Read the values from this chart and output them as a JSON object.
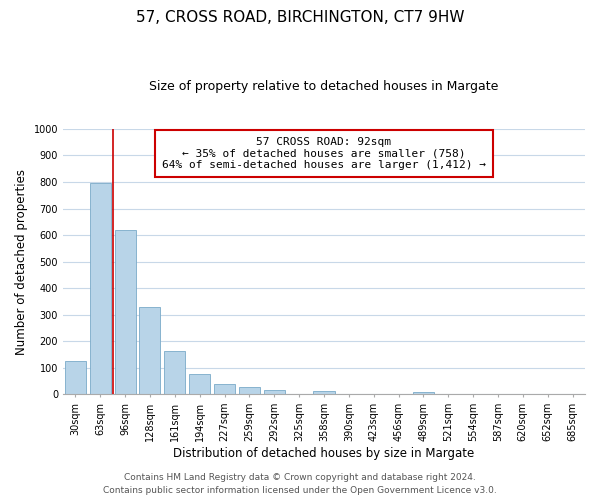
{
  "title": "57, CROSS ROAD, BIRCHINGTON, CT7 9HW",
  "subtitle": "Size of property relative to detached houses in Margate",
  "xlabel": "Distribution of detached houses by size in Margate",
  "ylabel": "Number of detached properties",
  "bar_labels": [
    "30sqm",
    "63sqm",
    "96sqm",
    "128sqm",
    "161sqm",
    "194sqm",
    "227sqm",
    "259sqm",
    "292sqm",
    "325sqm",
    "358sqm",
    "390sqm",
    "423sqm",
    "456sqm",
    "489sqm",
    "521sqm",
    "554sqm",
    "587sqm",
    "620sqm",
    "652sqm",
    "685sqm"
  ],
  "bar_values": [
    125,
    795,
    620,
    330,
    162,
    78,
    40,
    28,
    18,
    0,
    12,
    0,
    0,
    0,
    8,
    0,
    0,
    0,
    0,
    0,
    0
  ],
  "bar_color": "#b8d4e8",
  "bar_edge_color": "#7aaac8",
  "ylim": [
    0,
    1000
  ],
  "yticks": [
    0,
    100,
    200,
    300,
    400,
    500,
    600,
    700,
    800,
    900,
    1000
  ],
  "vline_x": 1.5,
  "vline_color": "#cc0000",
  "annotation_title": "57 CROSS ROAD: 92sqm",
  "annotation_line1": "← 35% of detached houses are smaller (758)",
  "annotation_line2": "64% of semi-detached houses are larger (1,412) →",
  "annotation_box_color": "#ffffff",
  "annotation_box_edge": "#cc0000",
  "footer_line1": "Contains HM Land Registry data © Crown copyright and database right 2024.",
  "footer_line2": "Contains public sector information licensed under the Open Government Licence v3.0.",
  "background_color": "#ffffff",
  "grid_color": "#c8d8e8",
  "title_fontsize": 11,
  "subtitle_fontsize": 9,
  "axis_label_fontsize": 8.5,
  "tick_fontsize": 7,
  "annotation_fontsize": 8,
  "footer_fontsize": 6.5
}
